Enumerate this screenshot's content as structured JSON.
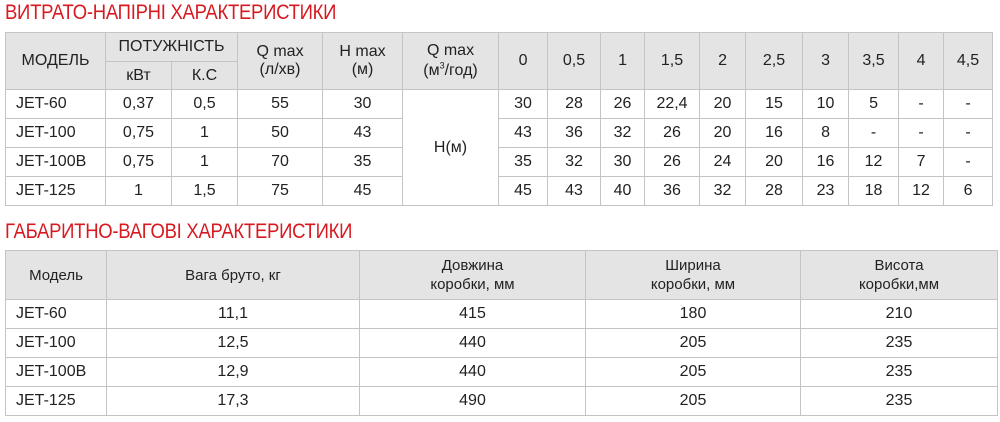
{
  "section1": {
    "title": "ВИТРАТО-НАПІРНІ ХАРАКТЕРИСТИКИ",
    "headers": {
      "model": "МОДЕЛЬ",
      "power": "ПОТУЖНІСТЬ",
      "kw": "кВт",
      "hp": "К.С",
      "qmax_l": "Q max",
      "qmax_l_unit": "(л/хв)",
      "hmax": "H max",
      "hmax_unit": "(м)",
      "qmax_m3": "Q max",
      "qmax_m3_unit_pre": "(м",
      "qmax_m3_unit_sup": "3",
      "qmax_m3_unit_post": "/год)",
      "flow_points": [
        "0",
        "0,5",
        "1",
        "1,5",
        "2",
        "2,5",
        "3",
        "3,5",
        "4",
        "4,5"
      ]
    },
    "h_label": "H(м)",
    "rows": [
      {
        "model": "JET-60",
        "kw": "0,37",
        "hp": "0,5",
        "qmax": "55",
        "hmax": "30",
        "h": [
          "30",
          "28",
          "26",
          "22,4",
          "20",
          "15",
          "10",
          "5",
          "-",
          "-"
        ]
      },
      {
        "model": "JET-100",
        "kw": "0,75",
        "hp": "1",
        "qmax": "50",
        "hmax": "43",
        "h": [
          "43",
          "36",
          "32",
          "26",
          "20",
          "16",
          "8",
          "-",
          "-",
          "-"
        ]
      },
      {
        "model": "JET-100B",
        "kw": "0,75",
        "hp": "1",
        "qmax": "70",
        "hmax": "35",
        "h": [
          "35",
          "32",
          "30",
          "26",
          "24",
          "20",
          "16",
          "12",
          "7",
          "-"
        ]
      },
      {
        "model": "JET-125",
        "kw": "1",
        "hp": "1,5",
        "qmax": "75",
        "hmax": "45",
        "h": [
          "45",
          "43",
          "40",
          "36",
          "32",
          "28",
          "23",
          "18",
          "12",
          "6"
        ]
      }
    ]
  },
  "section2": {
    "title": "ГАБАРИТНО-ВАГОВІ ХАРАКТЕРИСТИКИ",
    "headers": {
      "model": "Модель",
      "weight": "Вага бруто, кг",
      "length_1": "Довжина",
      "length_2": "коробки, мм",
      "width_1": "Ширина",
      "width_2": "коробки, мм",
      "height_1": "Висота",
      "height_2": "коробки,мм"
    },
    "rows": [
      {
        "model": "JET-60",
        "weight": "11,1",
        "length": "415",
        "width": "180",
        "height": "210"
      },
      {
        "model": "JET-100",
        "weight": "12,5",
        "length": "440",
        "width": "205",
        "height": "235"
      },
      {
        "model": "JET-100B",
        "weight": "12,9",
        "length": "440",
        "width": "205",
        "height": "235"
      },
      {
        "model": "JET-125",
        "weight": "17,3",
        "length": "490",
        "width": "205",
        "height": "235"
      }
    ]
  }
}
